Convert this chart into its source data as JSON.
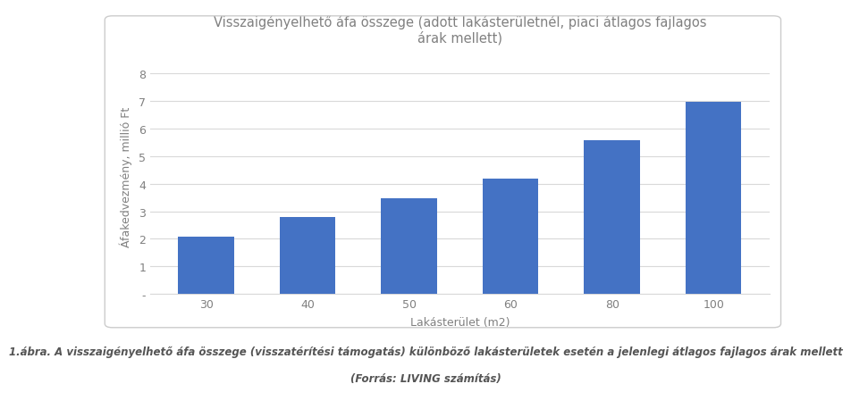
{
  "categories": [
    "30",
    "40",
    "50",
    "60",
    "80",
    "100"
  ],
  "values": [
    2.08,
    2.78,
    3.47,
    4.17,
    5.55,
    6.95
  ],
  "bar_color": "#4472c4",
  "title_line1": "Visszaigényelhető áfa összege (adott lakásterületnél, piaci átlagos fajlagos",
  "title_line2": "árak mellett)",
  "xlabel": "Lakásterület (m2)",
  "ylabel": "Áfakedvezmény, millió Ft",
  "ylim": [
    0,
    8.5
  ],
  "yticks": [
    0,
    1,
    2,
    3,
    4,
    5,
    6,
    7,
    8
  ],
  "ytick_labels": [
    "-",
    "1",
    "2",
    "3",
    "4",
    "5",
    "6",
    "7",
    "8"
  ],
  "caption_line1": "1.ábra. A visszaigényelhető áfa összege (visszatérítési támogatás) különböző lakásterületek esetén a jelenlegi átlagos fajlagos árak mellett",
  "caption_line2": "(Forrás: LIVING számítás)",
  "background_color": "#ffffff",
  "plot_bg_color": "#ffffff",
  "box_color": "#cccccc",
  "grid_color": "#d9d9d9",
  "title_color": "#808080",
  "axis_label_color": "#808080",
  "tick_label_color": "#808080",
  "caption_color": "#555555",
  "title_fontsize": 10.5,
  "axis_label_fontsize": 9,
  "tick_fontsize": 9,
  "caption_fontsize": 8.5
}
